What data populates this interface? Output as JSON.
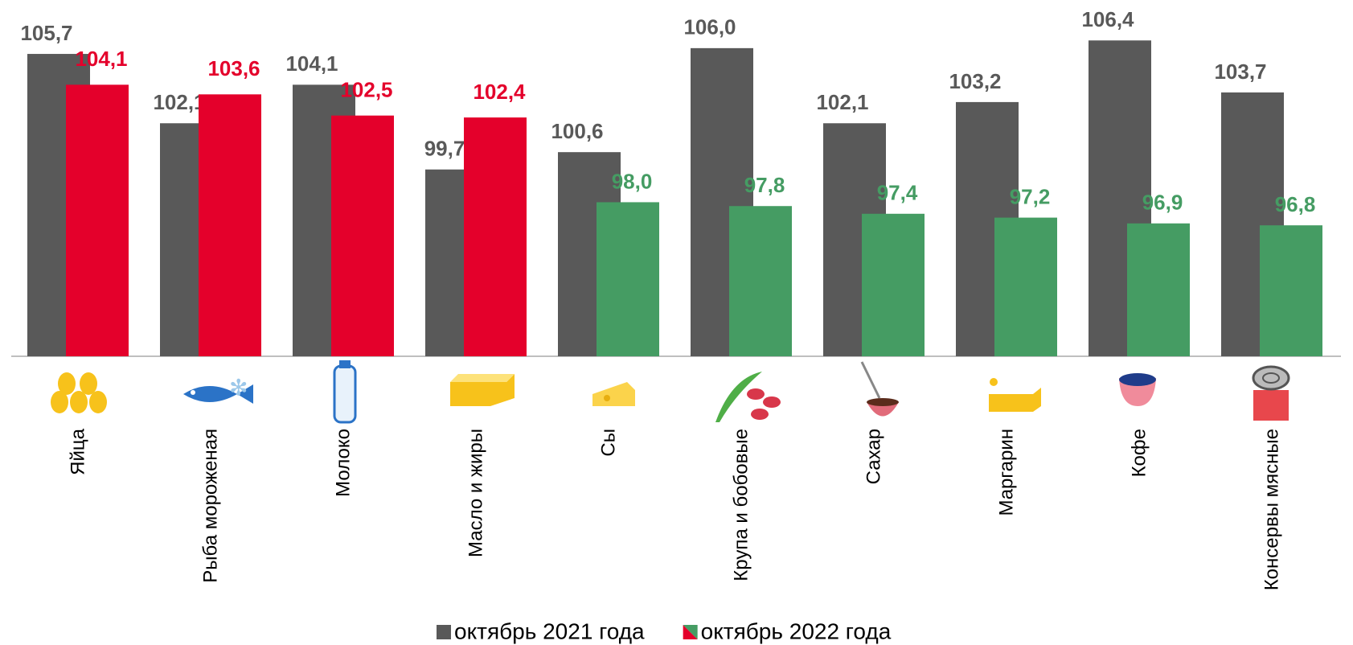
{
  "chart_data": {
    "type": "bar",
    "categories": [
      "Яйца",
      "Рыба мороженая",
      "Молоко",
      "Масло и жиры",
      "Сы",
      "Крупа и бобовые",
      "Сахар",
      "Маргарин",
      "Кофе",
      "Консервы мясные"
    ],
    "series": [
      {
        "name": "октябрь 2021 года",
        "color": "#595959",
        "values": [
          105.7,
          102.1,
          104.1,
          99.7,
          100.6,
          106.0,
          102.1,
          103.2,
          106.4,
          103.7
        ],
        "value_labels": [
          "105,7",
          "102,1",
          "104,1",
          "99,7",
          "100,6",
          "106,0",
          "102,1",
          "103,2",
          "106,4",
          "103,7"
        ]
      },
      {
        "name": "октябрь 2022 года",
        "colors": [
          "#e4002b",
          "#e4002b",
          "#e4002b",
          "#e4002b",
          "#459c63",
          "#459c63",
          "#459c63",
          "#459c63",
          "#459c63",
          "#459c63"
        ],
        "values": [
          104.1,
          103.6,
          102.5,
          102.4,
          98.0,
          97.8,
          97.4,
          97.2,
          96.9,
          96.8
        ],
        "value_labels": [
          "104,1",
          "103,6",
          "102,5",
          "102,4",
          "98,0",
          "97,8",
          "97,4",
          "97,2",
          "96,9",
          "96,8"
        ]
      }
    ],
    "ylim": [
      90,
      108.5
    ]
  }
}
